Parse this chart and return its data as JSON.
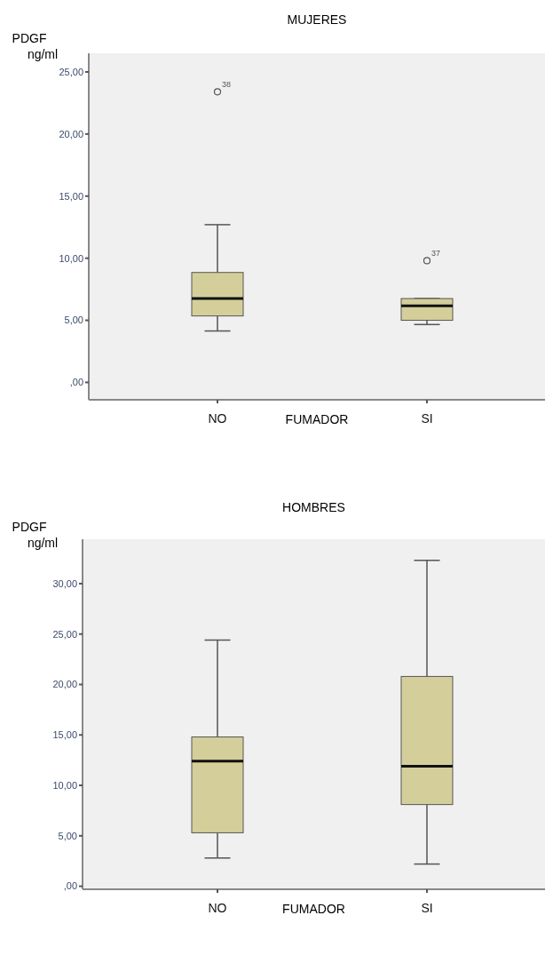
{
  "chart_data": [
    {
      "type": "box",
      "title": "MUJERES",
      "ylabel": "PDGF ng/ml",
      "xlabel": "FUMADOR",
      "categories": [
        "NO",
        "SI"
      ],
      "series": [
        {
          "color": "#d4cf9a",
          "boxes": [
            {
              "low": 4.14,
              "q1": 5.35,
              "median": 6.75,
              "q3": 8.85,
              "high": 12.7,
              "outliers": [
                23.4
              ]
            },
            {
              "low": 4.66,
              "q1": 5.0,
              "median": 6.16,
              "q3": 6.75,
              "high": 6.75,
              "outliers": [
                9.8
              ]
            }
          ]
        }
      ],
      "ylim": [
        -1.4,
        26.5
      ],
      "yticks": [
        {
          "value": 0,
          "label": ",00"
        },
        {
          "value": 5,
          "label": "5,00"
        },
        {
          "value": 10,
          "label": "10,00"
        },
        {
          "value": 15,
          "label": "15,00"
        },
        {
          "value": 20,
          "label": "20,00"
        },
        {
          "value": 25,
          "label": "25,00"
        }
      ],
      "annotations": [
        "38",
        "37"
      ]
    },
    {
      "type": "box",
      "title": "HOMBRES",
      "ylabel": "PDGF ng/ml",
      "xlabel": "FUMADOR",
      "categories": [
        "NO",
        "SI"
      ],
      "series": [
        {
          "color": "#d4cf9a",
          "boxes": [
            {
              "low": 2.8,
              "q1": 5.3,
              "median": 12.4,
              "q3": 14.8,
              "high": 24.4
            },
            {
              "low": 2.2,
              "q1": 8.1,
              "median": 11.9,
              "q3": 20.8,
              "high": 32.3
            }
          ]
        }
      ],
      "ylim": [
        -0.3,
        34.4
      ],
      "yticks": [
        {
          "value": 0,
          "label": ",00"
        },
        {
          "value": 5,
          "label": "5,00"
        },
        {
          "value": 10,
          "label": "10,00"
        },
        {
          "value": 15,
          "label": "15,00"
        },
        {
          "value": 20,
          "label": "20,00"
        },
        {
          "value": 25,
          "label": "25,00"
        },
        {
          "value": 30,
          "label": "30,00"
        }
      ]
    }
  ]
}
